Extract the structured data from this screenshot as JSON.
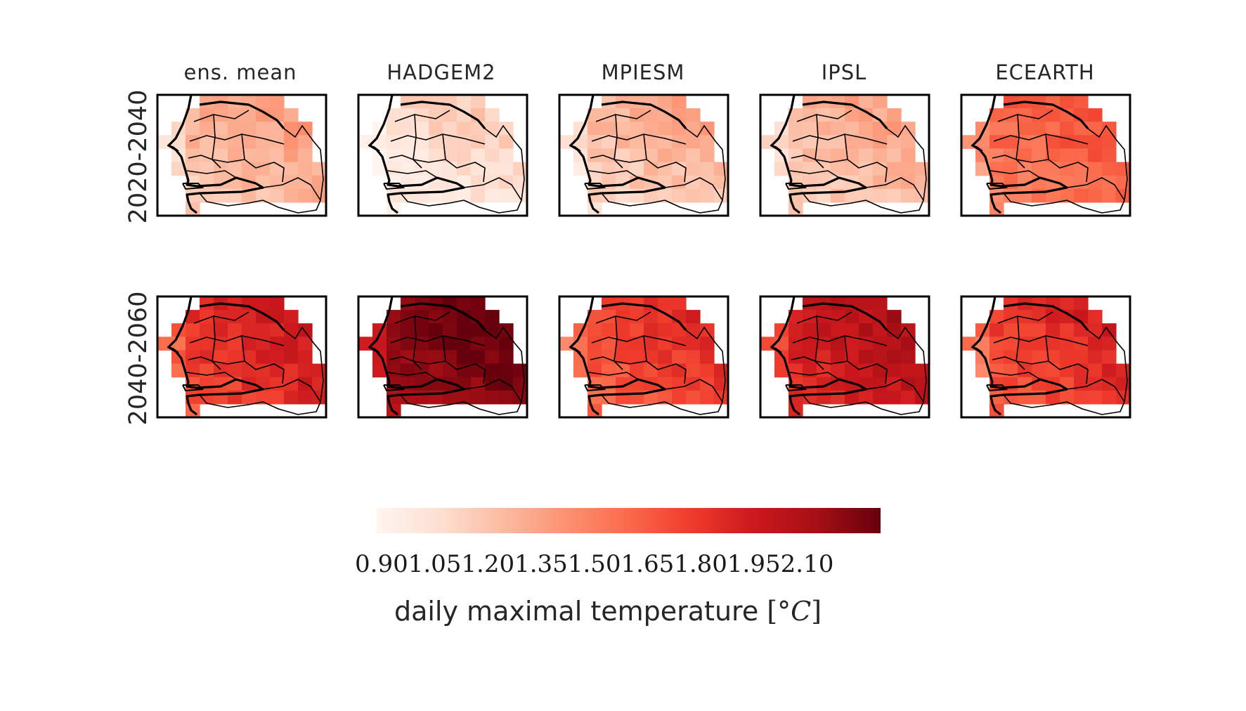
{
  "chart_data": {
    "type": "heatmap",
    "columns": [
      "ens. mean",
      "HADGEM2",
      "MPIESM",
      "IPSL",
      "ECEARTH"
    ],
    "rows": [
      "2020-2040",
      "2040-2060"
    ],
    "panel_mean_anomaly": [
      [
        1.22,
        1.05,
        1.18,
        1.2,
        1.5
      ],
      [
        1.7,
        2.02,
        1.62,
        1.8,
        1.65
      ]
    ],
    "colorbar": {
      "colormap": "Reds",
      "min": 0.9,
      "max": 2.1,
      "ticks": [
        "0.90",
        "1.05",
        "1.20",
        "1.35",
        "1.50",
        "1.65",
        "1.80",
        "1.95",
        "2.10"
      ],
      "label": "daily maximal temperature",
      "unit_open": "[°",
      "unit_var": "C",
      "unit_close": "]"
    }
  }
}
